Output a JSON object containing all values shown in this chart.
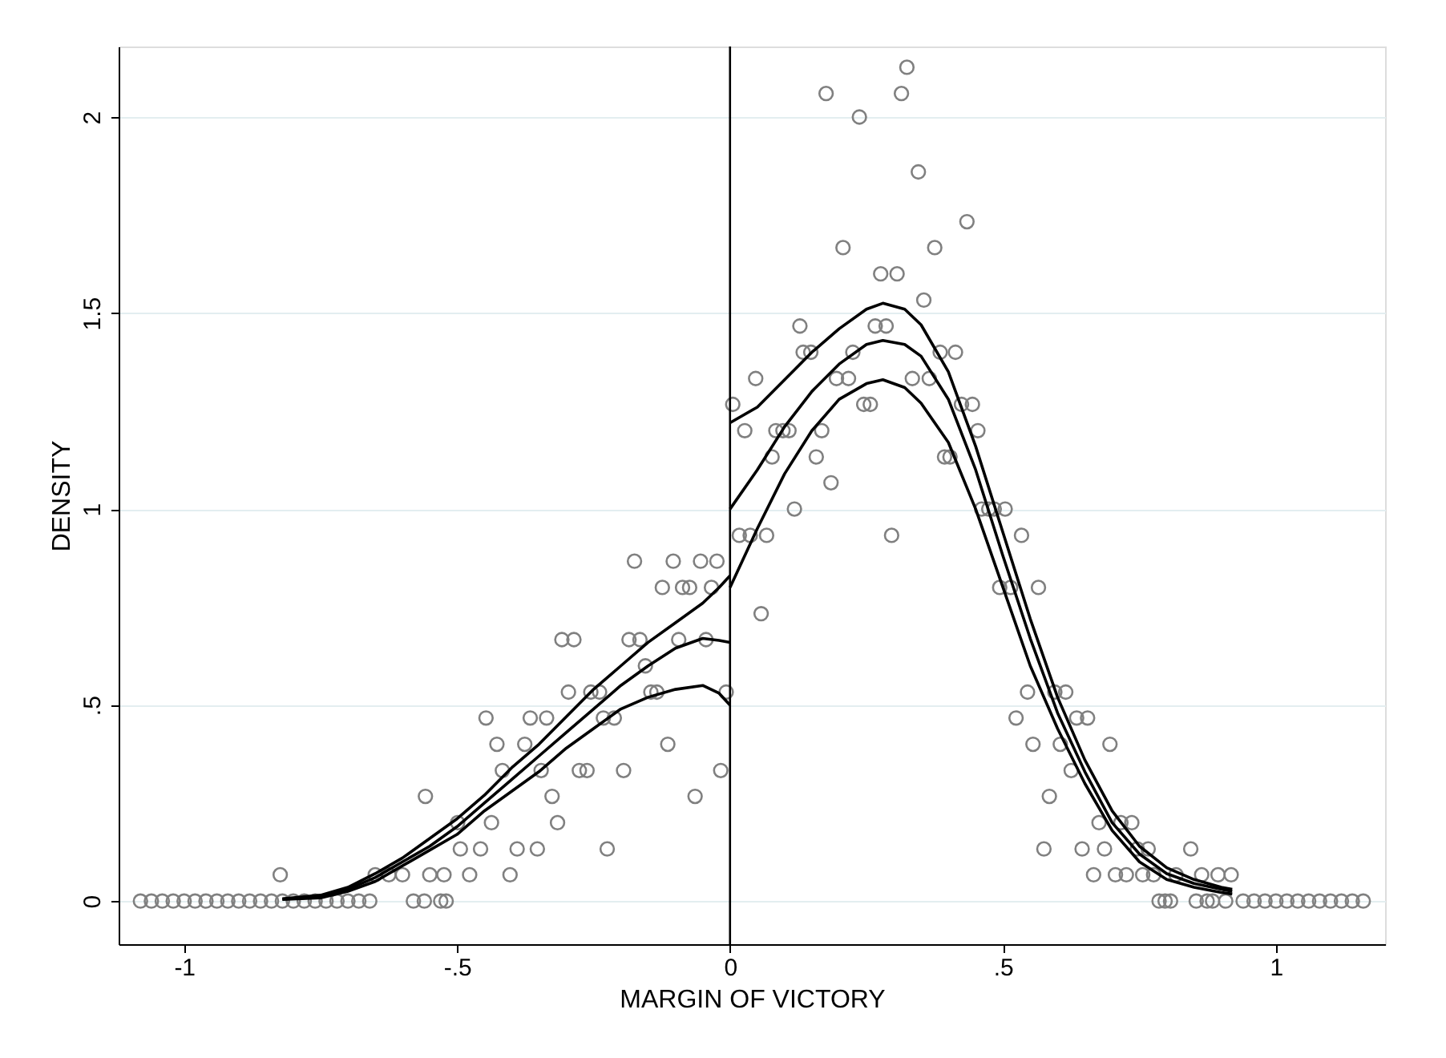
{
  "chart_data": {
    "type": "scatter",
    "xlabel": "MARGIN OF VICTORY",
    "ylabel": "DENSITY",
    "xlim": [
      -1.12,
      1.2
    ],
    "ylim": [
      -0.11,
      2.18
    ],
    "xticks": [
      -1,
      {
        "value": -0.5,
        "label": "-.5"
      },
      0,
      {
        "value": 0.5,
        "label": ".5"
      },
      1
    ],
    "yticks": [
      0,
      {
        "value": 0.5,
        "label": ".5"
      },
      1,
      {
        "value": 1.5,
        "label": "1.5"
      },
      2
    ],
    "grid": "y",
    "ref_lines": [
      {
        "axis": "x",
        "value": 0,
        "color": "#000000"
      }
    ],
    "series": [
      {
        "marker": "circle",
        "color": "#808080",
        "x": [
          -1.08,
          -1.06,
          -1.04,
          -1.02,
          -1.0,
          -0.98,
          -0.96,
          -0.94,
          -0.92,
          -0.9,
          -0.88,
          -0.86,
          -0.84,
          -0.82,
          -0.8,
          -0.78,
          -0.76,
          -0.74,
          -0.72,
          -0.7,
          -0.68,
          -0.66,
          -0.58,
          -0.56,
          -0.53,
          -0.52,
          -0.824,
          -0.65,
          -0.625,
          -0.6,
          -0.55,
          -0.558,
          -0.499,
          -0.524,
          -0.477,
          -0.494,
          -0.457,
          -0.447,
          -0.427,
          -0.417,
          -0.437,
          -0.403,
          -0.39,
          -0.376,
          -0.366,
          -0.353,
          -0.346,
          -0.336,
          -0.326,
          -0.316,
          -0.308,
          -0.286,
          -0.296,
          -0.276,
          -0.262,
          -0.255,
          -0.239,
          -0.225,
          -0.232,
          -0.212,
          -0.195,
          -0.185,
          -0.175,
          -0.165,
          -0.155,
          -0.145,
          -0.134,
          -0.124,
          -0.114,
          -0.104,
          -0.094,
          -0.087,
          -0.074,
          -0.064,
          -0.054,
          -0.044,
          -0.034,
          -0.024,
          -0.017,
          -0.007,
          0.005,
          0.017,
          0.027,
          0.037,
          0.047,
          0.057,
          0.067,
          0.077,
          0.084,
          0.097,
          0.108,
          0.118,
          0.128,
          0.134,
          0.148,
          0.158,
          0.168,
          0.176,
          0.185,
          0.195,
          0.207,
          0.217,
          0.225,
          0.237,
          0.245,
          0.257,
          0.266,
          0.276,
          0.286,
          0.296,
          0.306,
          0.314,
          0.324,
          0.334,
          0.345,
          0.355,
          0.365,
          0.375,
          0.385,
          0.393,
          0.403,
          0.413,
          0.424,
          0.434,
          0.444,
          0.454,
          0.461,
          0.474,
          0.484,
          0.494,
          0.504,
          0.514,
          0.524,
          0.534,
          0.545,
          0.555,
          0.565,
          0.575,
          0.585,
          0.595,
          0.605,
          0.615,
          0.625,
          0.635,
          0.645,
          0.655,
          0.666,
          0.676,
          0.686,
          0.696,
          0.706,
          0.716,
          0.726,
          0.736,
          0.746,
          0.756,
          0.766,
          0.776,
          0.786,
          0.797,
          0.807,
          0.817,
          0.844,
          0.854,
          0.864,
          0.874,
          0.884,
          0.894,
          0.908,
          0.918,
          0.94,
          0.96,
          0.98,
          1.0,
          1.02,
          1.04,
          1.06,
          1.08,
          1.1,
          1.12,
          1.14,
          1.16
        ],
        "values": [
          0,
          0,
          0,
          0,
          0,
          0,
          0,
          0,
          0,
          0,
          0,
          0,
          0,
          0,
          0,
          0,
          0,
          0,
          0,
          0,
          0,
          0,
          0,
          0,
          0,
          0,
          0.067,
          0.067,
          0.067,
          0.067,
          0.067,
          0.267,
          0.2,
          0.067,
          0.067,
          0.133,
          0.133,
          0.467,
          0.4,
          0.333,
          0.2,
          0.067,
          0.133,
          0.4,
          0.467,
          0.133,
          0.333,
          0.467,
          0.267,
          0.2,
          0.667,
          0.667,
          0.533,
          0.333,
          0.333,
          0.533,
          0.533,
          0.133,
          0.467,
          0.467,
          0.333,
          0.667,
          0.867,
          0.667,
          0.6,
          0.533,
          0.533,
          0.8,
          0.4,
          0.867,
          0.667,
          0.8,
          0.8,
          0.267,
          0.867,
          0.667,
          0.8,
          0.867,
          0.333,
          0.533,
          1.267,
          0.933,
          1.2,
          0.933,
          1.333,
          0.733,
          0.933,
          1.133,
          1.2,
          1.2,
          1.2,
          1.0,
          1.467,
          1.4,
          1.4,
          1.133,
          1.2,
          2.06,
          1.067,
          1.333,
          1.667,
          1.333,
          1.4,
          2.0,
          1.267,
          1.267,
          1.467,
          1.6,
          1.467,
          0.933,
          1.6,
          2.06,
          2.127,
          1.333,
          1.86,
          1.533,
          1.333,
          1.667,
          1.4,
          1.133,
          1.133,
          1.4,
          1.267,
          1.733,
          1.267,
          1.2,
          1.0,
          1.0,
          1.0,
          0.8,
          1.0,
          0.8,
          0.467,
          0.933,
          0.533,
          0.4,
          0.8,
          0.133,
          0.267,
          0.533,
          0.4,
          0.533,
          0.333,
          0.467,
          0.133,
          0.467,
          0.067,
          0.2,
          0.133,
          0.4,
          0.067,
          0.2,
          0.067,
          0.2,
          0.133,
          0.067,
          0.133,
          0.067,
          0,
          0,
          0,
          0.067,
          0.133,
          0,
          0.067,
          0,
          0,
          0.067,
          0,
          0.067,
          0,
          0,
          0,
          0,
          0,
          0,
          0,
          0,
          0,
          0,
          0,
          0
        ]
      },
      {
        "type": "line",
        "color": "#000000",
        "x": [
          -0.82,
          -0.75,
          -0.7,
          -0.65,
          -0.6,
          -0.55,
          -0.5,
          -0.45,
          -0.4,
          -0.35,
          -0.3,
          -0.25,
          -0.2,
          -0.15,
          -0.1,
          -0.05,
          -0.02,
          0
        ],
        "values": [
          0.005,
          0.01,
          0.03,
          0.06,
          0.1,
          0.14,
          0.19,
          0.25,
          0.31,
          0.37,
          0.43,
          0.49,
          0.55,
          0.6,
          0.645,
          0.67,
          0.665,
          0.66
        ]
      },
      {
        "type": "line",
        "color": "#000000",
        "x": [
          -0.82,
          -0.75,
          -0.7,
          -0.65,
          -0.6,
          -0.55,
          -0.5,
          -0.45,
          -0.4,
          -0.35,
          -0.3,
          -0.25,
          -0.2,
          -0.15,
          -0.1,
          -0.05,
          -0.02,
          0
        ],
        "values": [
          0.006,
          0.015,
          0.035,
          0.07,
          0.11,
          0.16,
          0.21,
          0.27,
          0.34,
          0.4,
          0.47,
          0.54,
          0.6,
          0.66,
          0.71,
          0.76,
          0.8,
          0.83
        ]
      },
      {
        "type": "line",
        "color": "#000000",
        "x": [
          -0.82,
          -0.75,
          -0.7,
          -0.65,
          -0.6,
          -0.55,
          -0.5,
          -0.45,
          -0.4,
          -0.35,
          -0.3,
          -0.25,
          -0.2,
          -0.15,
          -0.1,
          -0.05,
          -0.02,
          0
        ],
        "values": [
          0.004,
          0.008,
          0.025,
          0.05,
          0.09,
          0.13,
          0.17,
          0.23,
          0.28,
          0.33,
          0.39,
          0.44,
          0.49,
          0.52,
          0.54,
          0.55,
          0.53,
          0.5
        ]
      },
      {
        "type": "line",
        "color": "#000000",
        "x": [
          0,
          0.05,
          0.1,
          0.15,
          0.2,
          0.25,
          0.28,
          0.32,
          0.35,
          0.4,
          0.45,
          0.5,
          0.55,
          0.6,
          0.65,
          0.7,
          0.75,
          0.8,
          0.85,
          0.9,
          0.92
        ],
        "values": [
          1.0,
          1.1,
          1.21,
          1.3,
          1.37,
          1.42,
          1.43,
          1.42,
          1.39,
          1.28,
          1.1,
          0.88,
          0.67,
          0.48,
          0.33,
          0.2,
          0.12,
          0.07,
          0.045,
          0.03,
          0.025
        ]
      },
      {
        "type": "line",
        "color": "#000000",
        "x": [
          0,
          0.05,
          0.1,
          0.15,
          0.2,
          0.25,
          0.28,
          0.32,
          0.35,
          0.4,
          0.45,
          0.5,
          0.55,
          0.6,
          0.65,
          0.7,
          0.75,
          0.8,
          0.85,
          0.9,
          0.92
        ],
        "values": [
          1.22,
          1.26,
          1.33,
          1.4,
          1.46,
          1.51,
          1.525,
          1.51,
          1.47,
          1.35,
          1.16,
          0.94,
          0.72,
          0.52,
          0.36,
          0.23,
          0.14,
          0.085,
          0.055,
          0.035,
          0.03
        ]
      },
      {
        "type": "line",
        "color": "#000000",
        "x": [
          0,
          0.05,
          0.1,
          0.15,
          0.2,
          0.25,
          0.28,
          0.32,
          0.35,
          0.4,
          0.45,
          0.5,
          0.55,
          0.6,
          0.65,
          0.7,
          0.75,
          0.8,
          0.85,
          0.9,
          0.92
        ],
        "values": [
          0.8,
          0.95,
          1.09,
          1.2,
          1.28,
          1.32,
          1.33,
          1.31,
          1.27,
          1.17,
          1.0,
          0.8,
          0.6,
          0.44,
          0.3,
          0.18,
          0.1,
          0.055,
          0.035,
          0.022,
          0.018
        ]
      }
    ]
  }
}
